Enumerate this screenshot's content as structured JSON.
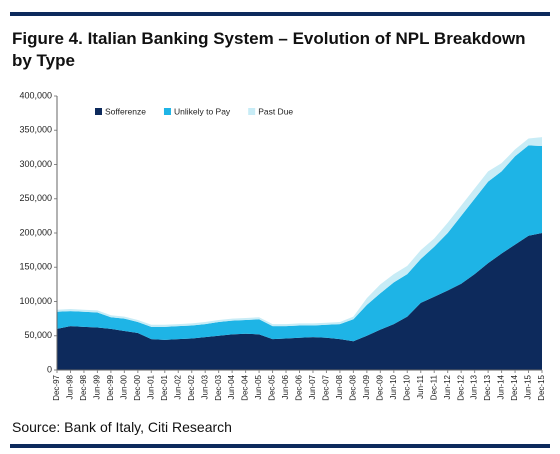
{
  "chart_data": {
    "type": "stacked_area",
    "title": "Figure 4. Italian Banking System – Evolution of NPL Breakdown by Type",
    "source": "Source: Bank of Italy, Citi Research",
    "categories": [
      "Dec-97",
      "Jun-98",
      "Dec-98",
      "Jun-99",
      "Dec-99",
      "Jun-00",
      "Dec-00",
      "Jun-01",
      "Dec-01",
      "Jun-02",
      "Dec-02",
      "Jun-03",
      "Dec-03",
      "Jun-04",
      "Dec-04",
      "Jun-05",
      "Dec-05",
      "Jun-06",
      "Dec-06",
      "Jun-07",
      "Dec-07",
      "Jun-08",
      "Dec-08",
      "Jun-09",
      "Dec-09",
      "Jun-10",
      "Dec-10",
      "Jun-11",
      "Dec-11",
      "Jun-12",
      "Dec-12",
      "Jun-13",
      "Dec-13",
      "Jun-14",
      "Dec-14",
      "Jun-15",
      "Dec-15"
    ],
    "series": [
      {
        "name": "Sofferenze",
        "color": "#0d2a5c",
        "values": [
          60000,
          64000,
          63000,
          62000,
          60000,
          57000,
          54000,
          45000,
          44000,
          45000,
          46000,
          48000,
          50000,
          52000,
          53000,
          52000,
          45000,
          46000,
          47000,
          48000,
          47000,
          45000,
          42000,
          50000,
          59000,
          67000,
          78000,
          98000,
          107000,
          116000,
          126000,
          140000,
          156000,
          170000,
          183000,
          196000,
          200000
        ]
      },
      {
        "name": "Unlikely to Pay",
        "color": "#1eb4e6",
        "values": [
          25000,
          22000,
          22000,
          22000,
          17000,
          18000,
          16000,
          18000,
          19000,
          19000,
          19000,
          19000,
          20000,
          20000,
          20000,
          22000,
          19000,
          18000,
          18000,
          17000,
          19000,
          22000,
          32000,
          45000,
          53000,
          61000,
          62000,
          64000,
          73000,
          84000,
          99000,
          110000,
          119000,
          120000,
          129000,
          132000,
          127000
        ]
      },
      {
        "name": "Past Due",
        "color": "#c8ecf6",
        "values": [
          3000,
          3000,
          3000,
          3000,
          3000,
          3000,
          3000,
          3000,
          3000,
          3000,
          3000,
          3000,
          3000,
          3000,
          3000,
          3000,
          3000,
          3000,
          3000,
          3000,
          3000,
          3000,
          4000,
          10000,
          13000,
          12000,
          12000,
          13000,
          12000,
          15000,
          15000,
          15000,
          15000,
          12000,
          10000,
          10000,
          13000
        ]
      }
    ],
    "ylim": [
      0,
      400000
    ],
    "yticks": [
      0,
      {
        "value": 50000,
        "label": "50,000"
      },
      {
        "value": 100000,
        "label": "100,000"
      },
      {
        "value": 150000,
        "label": "150,000"
      },
      {
        "value": 200000,
        "label": "200,000"
      },
      {
        "value": 250000,
        "label": "250,000"
      },
      {
        "value": 300000,
        "label": "300,000"
      },
      {
        "value": 350000,
        "label": "350,000"
      },
      {
        "value": 400000,
        "label": "400,000"
      }
    ],
    "legend": "top-left",
    "grid": false
  }
}
